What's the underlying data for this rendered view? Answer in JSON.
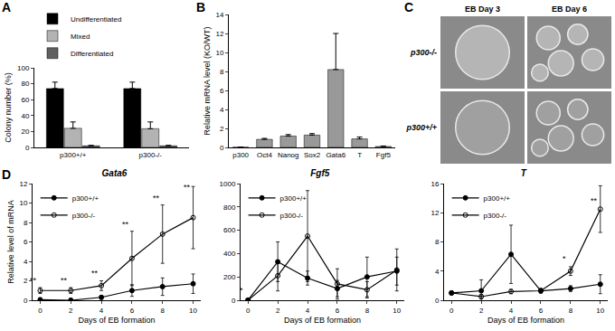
{
  "chart_data": [
    {
      "panel": "A",
      "type": "bar",
      "categories": [
        "p300+/+",
        "p300-/-"
      ],
      "y_label": "Colony number (%)",
      "ylim": [
        0,
        100
      ],
      "yticks": [
        0,
        20,
        40,
        60,
        80,
        100
      ],
      "grid": false,
      "legend": "above",
      "series": [
        {
          "name": "Undifferentiated",
          "color": "#000000",
          "values": [
            74,
            74
          ],
          "errors": [
            8,
            8
          ]
        },
        {
          "name": "Mixed",
          "color": "#b3b3b3",
          "values": [
            24,
            23.5
          ],
          "errors": [
            8,
            8.5
          ]
        },
        {
          "name": "Differentiated",
          "color": "#606060",
          "values": [
            2,
            2
          ],
          "errors": [
            0.5,
            0.5
          ]
        }
      ]
    },
    {
      "panel": "B",
      "type": "bar",
      "categories": [
        "p300",
        "Oct4",
        "Nanog",
        "Sox2",
        "Gata6",
        "T",
        "Fgf5"
      ],
      "values": [
        0.02,
        0.85,
        1.2,
        1.3,
        8.2,
        0.9,
        0.1
      ],
      "errors": [
        0,
        0.1,
        0.15,
        0.15,
        3.8,
        0.2,
        0.05
      ],
      "color": "#999999",
      "y_label": "Relative mRNA level (KO/WT)",
      "ylim": [
        0,
        14
      ],
      "yticks": [
        0,
        2,
        4,
        6,
        8,
        10,
        12,
        14
      ],
      "grid": false
    },
    {
      "panel": "D",
      "type": "line",
      "title": "Gata6",
      "x": [
        0,
        2,
        4,
        6,
        8,
        10
      ],
      "x_label": "Days of EB formation",
      "y_label": "Relative level of mRNA",
      "xlim": [
        -0.5,
        10.5
      ],
      "xticks": [
        0,
        2,
        4,
        6,
        8,
        10
      ],
      "ylim": [
        0,
        12
      ],
      "yticks": [
        0,
        2,
        4,
        6,
        8,
        10,
        12
      ],
      "grid": false,
      "legend": "top-left",
      "series": [
        {
          "name": "p300+/+",
          "color": "#000000",
          "marker": "circle",
          "line_style": "solid",
          "values": [
            0.05,
            0.0,
            0.3,
            1.0,
            1.4,
            1.7
          ],
          "errors": [
            0.2,
            0.2,
            0.2,
            0.6,
            0.9,
            1.0
          ]
        },
        {
          "name": "p300-/-",
          "color": "#000000",
          "marker": "circle-open",
          "line_style": "solid",
          "values": [
            1.0,
            1.0,
            1.5,
            4.3,
            6.8,
            8.5
          ],
          "errors": [
            0.3,
            0.3,
            0.5,
            2.8,
            3.0,
            3.2
          ]
        }
      ],
      "annotations": [
        {
          "x": 0,
          "y": 1.4,
          "text": "**"
        },
        {
          "x": 2,
          "y": 1.4,
          "text": "**"
        },
        {
          "x": 4,
          "y": 2.1,
          "text": "**"
        },
        {
          "x": 6,
          "y": 7.2,
          "text": "**"
        },
        {
          "x": 8,
          "y": 9.9,
          "text": "**"
        },
        {
          "x": 10,
          "y": 11.0,
          "text": "**"
        }
      ]
    },
    {
      "type": "line",
      "title": "Fgf5",
      "x": [
        0,
        2,
        4,
        6,
        8,
        10
      ],
      "x_label": "Days of EB formation",
      "xlim": [
        -0.5,
        10.5
      ],
      "xticks": [
        0,
        2,
        4,
        6,
        8,
        10
      ],
      "ylim": [
        0,
        1000
      ],
      "yticks": [
        0,
        200,
        400,
        600,
        800,
        1000
      ],
      "grid": false,
      "legend": "top-left",
      "series": [
        {
          "name": "p300+/+",
          "color": "#000000",
          "marker": "circle",
          "line_style": "solid",
          "values": [
            1,
            330,
            190,
            100,
            200,
            250
          ],
          "errors": [
            0,
            170,
            60,
            70,
            170,
            120
          ]
        },
        {
          "name": "p300-/-",
          "color": "#000000",
          "marker": "circle-open",
          "line_style": "solid",
          "values": [
            1,
            210,
            550,
            140,
            90,
            260
          ],
          "errors": [
            0,
            130,
            390,
            130,
            70,
            180
          ]
        }
      ],
      "annotations": [
        {
          "x": 0,
          "y": 30,
          "text": "*"
        }
      ]
    },
    {
      "type": "line",
      "title": "T",
      "x": [
        0,
        2,
        4,
        6,
        8,
        10
      ],
      "x_label": "Days of EB formation",
      "xlim": [
        -0.5,
        10.5
      ],
      "xticks": [
        0,
        2,
        4,
        6,
        8,
        10
      ],
      "ylim": [
        0,
        16
      ],
      "yticks": [
        0,
        4,
        8,
        12,
        16
      ],
      "grid": false,
      "legend": "top-left",
      "series": [
        {
          "name": "p300+/+",
          "color": "#000000",
          "marker": "circle",
          "line_style": "solid",
          "values": [
            1,
            1.3,
            6.3,
            1.3,
            1.6,
            2.2
          ],
          "errors": [
            0.2,
            1.5,
            4.0,
            0.3,
            0.4,
            1.3
          ]
        },
        {
          "name": "p300-/-",
          "color": "#000000",
          "marker": "circle-open",
          "line_style": "solid",
          "values": [
            1,
            0.5,
            1.2,
            1.3,
            4.0,
            12.5
          ],
          "errors": [
            0.2,
            0.3,
            0.3,
            0.3,
            0.6,
            3.2
          ]
        }
      ],
      "annotations": [
        {
          "x": 8,
          "y": 4.8,
          "text": "*"
        },
        {
          "x": 10,
          "y": 12.8,
          "text": "**"
        }
      ]
    }
  ],
  "image_panel": {
    "panel": "C",
    "columns": [
      "EB Day 3",
      "EB Day 6"
    ],
    "rows": [
      "p300-/-",
      "p300+/+"
    ]
  }
}
